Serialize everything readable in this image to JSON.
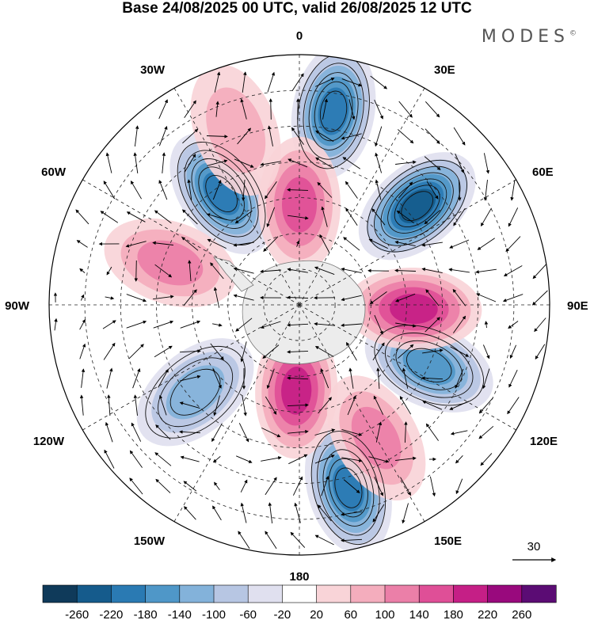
{
  "title": "Base 24/08/2025 00 UTC, valid 26/08/2025 12 UTC",
  "logo": "MODES",
  "logo_mark": "©",
  "longitude_labels": {
    "lon_0": "0",
    "lon_30e": "30E",
    "lon_60e": "60E",
    "lon_90e": "90E",
    "lon_120e": "120E",
    "lon_150e": "150E",
    "lon_180": "180",
    "lon_150w": "150W",
    "lon_120w": "120W",
    "lon_90w": "90W",
    "lon_60w": "60W",
    "lon_30w": "30W"
  },
  "reference_vector": {
    "label": "30",
    "magnitude": 30
  },
  "colorbar": {
    "ticks": [
      "-260",
      "-220",
      "-180",
      "-140",
      "-100",
      "-60",
      "-20",
      "20",
      "60",
      "100",
      "140",
      "180",
      "220",
      "260"
    ],
    "colors": [
      "#0f3a5a",
      "#155b8c",
      "#2a7ab3",
      "#4f97c8",
      "#83b2da",
      "#b7c6e3",
      "#e0e0ef",
      "#ffffff",
      "#f9d4d8",
      "#f4adbd",
      "#eb7fa8",
      "#df4f97",
      "#c51f86",
      "#99097d",
      "#5b0c74"
    ]
  },
  "anomaly_centers": [
    {
      "name": "low-south-atlantic",
      "lon": -35,
      "lat": -52,
      "value": -200
    },
    {
      "name": "low-indian-ocean",
      "lon": 50,
      "lat": -47,
      "value": -220
    },
    {
      "name": "low-south-of-africa",
      "lon": 10,
      "lat": -35,
      "value": -180
    },
    {
      "name": "low-south-of-australia",
      "lon": 115,
      "lat": -50,
      "value": -140
    },
    {
      "name": "low-new-zealand",
      "lon": 165,
      "lat": -37,
      "value": -200
    },
    {
      "name": "low-south-pacific",
      "lon": -130,
      "lat": -52,
      "value": -100
    },
    {
      "name": "high-weddell",
      "lon": 0,
      "lat": -62,
      "value": 140
    },
    {
      "name": "high-kerguelen",
      "lon": 92,
      "lat": -58,
      "value": 200
    },
    {
      "name": "high-ross-sea",
      "lon": -178,
      "lat": -66,
      "value": 180
    },
    {
      "name": "high-drake",
      "lon": -72,
      "lat": -52,
      "value": 120
    },
    {
      "name": "high-tasman",
      "lon": 150,
      "lat": -47,
      "value": 100
    },
    {
      "name": "high-south-america",
      "lon": -20,
      "lat": -38,
      "value": 60
    }
  ]
}
